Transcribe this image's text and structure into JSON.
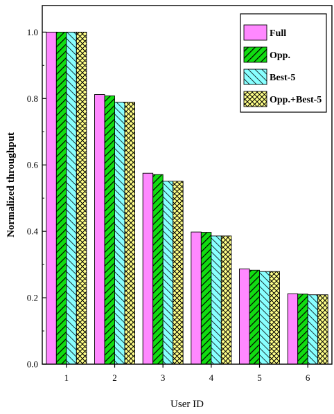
{
  "chart_data": {
    "type": "bar",
    "title": "",
    "xlabel": "User ID",
    "ylabel": "Normalized throughput",
    "categories": [
      "1",
      "2",
      "3",
      "4",
      "5",
      "6"
    ],
    "ylim": [
      0.0,
      1.08
    ],
    "yticks": [
      0.0,
      0.2,
      0.4,
      0.6,
      0.8,
      1.0
    ],
    "ytick_labels": [
      "0.0",
      "0.2",
      "0.4",
      "0.6",
      "0.8",
      "1.0"
    ],
    "legend_position": "top-right",
    "grid": false,
    "series": [
      {
        "name": "Full",
        "color": "#ff88ff",
        "pattern": "solid",
        "values": [
          1.0,
          0.812,
          0.575,
          0.398,
          0.287,
          0.212
        ]
      },
      {
        "name": "Opp.",
        "color": "#11dd11",
        "pattern": "diagonal-forward",
        "values": [
          1.0,
          0.808,
          0.571,
          0.397,
          0.283,
          0.211
        ]
      },
      {
        "name": "Best-5",
        "color": "#88ffff",
        "pattern": "diagonal-backward",
        "values": [
          1.0,
          0.789,
          0.551,
          0.386,
          0.279,
          0.209
        ]
      },
      {
        "name": "Opp.+Best-5",
        "color": "#ffff88",
        "pattern": "crosshatch",
        "values": [
          1.0,
          0.789,
          0.551,
          0.386,
          0.279,
          0.209
        ]
      }
    ]
  }
}
